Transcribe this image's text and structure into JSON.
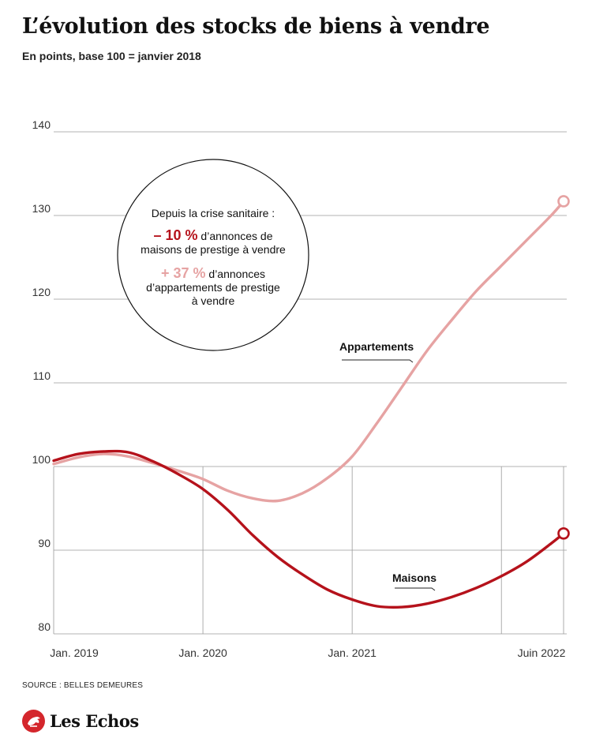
{
  "header": {
    "title": "L’évolution des stocks de biens à vendre",
    "subtitle": "En points, base 100 = janvier 2018"
  },
  "callout": {
    "intro": "Depuis la crise sanitaire :",
    "line1_value": "– 10 %",
    "line1_rest": " d’annonces de",
    "line2": "maisons de prestige à vendre",
    "line3_value": "+ 37 %",
    "line3_rest": " d’annonces",
    "line4": "d’appartements de prestige",
    "line5": "à vendre"
  },
  "footer": {
    "source": "SOURCE : BELLES DEMEURES",
    "logo": "Les Echos"
  },
  "colors": {
    "maisons": "#b5121b",
    "appartements": "#e6a3a3",
    "callout_value_maisons": "#b5121b",
    "callout_value_appartements": "#e6a3a3",
    "grid": "#9a9a9a"
  },
  "chart_data": {
    "type": "line",
    "title": "L’évolution des stocks de biens à vendre",
    "subtitle": "En points, base 100 = janvier 2018",
    "xlabel": "",
    "ylabel": "",
    "ylim": [
      80,
      140
    ],
    "yticks": [
      80,
      90,
      100,
      110,
      120,
      130,
      140
    ],
    "xlim": [
      "2019-01",
      "2022-06"
    ],
    "xticks": [
      {
        "x": "2019-01",
        "label": "Jan. 2019"
      },
      {
        "x": "2020-01",
        "label": "Jan. 2020"
      },
      {
        "x": "2021-01",
        "label": "Jan. 2021"
      },
      {
        "x": "2022-06",
        "label": "Juin 2022"
      }
    ],
    "vertical_gridlines": [
      "2019-01",
      "2020-01",
      "2021-01",
      "2022-01",
      "2022-06"
    ],
    "series": [
      {
        "name": "Maisons",
        "color": "#b5121b",
        "points": [
          {
            "x": "2019-01",
            "y": 100.7
          },
          {
            "x": "2019-03",
            "y": 101.5
          },
          {
            "x": "2019-05",
            "y": 101.8
          },
          {
            "x": "2019-07",
            "y": 101.7
          },
          {
            "x": "2019-09",
            "y": 100.6
          },
          {
            "x": "2019-11",
            "y": 99.1
          },
          {
            "x": "2020-01",
            "y": 97.3
          },
          {
            "x": "2020-03",
            "y": 94.8
          },
          {
            "x": "2020-05",
            "y": 91.8
          },
          {
            "x": "2020-07",
            "y": 89.2
          },
          {
            "x": "2020-09",
            "y": 87.1
          },
          {
            "x": "2020-11",
            "y": 85.3
          },
          {
            "x": "2021-01",
            "y": 84.1
          },
          {
            "x": "2021-03",
            "y": 83.3
          },
          {
            "x": "2021-05",
            "y": 83.2
          },
          {
            "x": "2021-07",
            "y": 83.6
          },
          {
            "x": "2021-09",
            "y": 84.4
          },
          {
            "x": "2021-11",
            "y": 85.5
          },
          {
            "x": "2022-01",
            "y": 86.9
          },
          {
            "x": "2022-03",
            "y": 88.6
          },
          {
            "x": "2022-05",
            "y": 90.8
          },
          {
            "x": "2022-06",
            "y": 92.0
          }
        ]
      },
      {
        "name": "Appartements",
        "color": "#e6a3a3",
        "points": [
          {
            "x": "2019-01",
            "y": 100.3
          },
          {
            "x": "2019-03",
            "y": 101.1
          },
          {
            "x": "2019-05",
            "y": 101.5
          },
          {
            "x": "2019-07",
            "y": 101.2
          },
          {
            "x": "2019-09",
            "y": 100.4
          },
          {
            "x": "2019-11",
            "y": 99.5
          },
          {
            "x": "2020-01",
            "y": 98.5
          },
          {
            "x": "2020-03",
            "y": 97.1
          },
          {
            "x": "2020-05",
            "y": 96.2
          },
          {
            "x": "2020-07",
            "y": 95.9
          },
          {
            "x": "2020-09",
            "y": 96.8
          },
          {
            "x": "2020-11",
            "y": 98.6
          },
          {
            "x": "2021-01",
            "y": 101.2
          },
          {
            "x": "2021-03",
            "y": 105.2
          },
          {
            "x": "2021-05",
            "y": 109.5
          },
          {
            "x": "2021-07",
            "y": 113.8
          },
          {
            "x": "2021-09",
            "y": 117.5
          },
          {
            "x": "2021-11",
            "y": 121.0
          },
          {
            "x": "2022-01",
            "y": 124.0
          },
          {
            "x": "2022-03",
            "y": 127.0
          },
          {
            "x": "2022-05",
            "y": 130.0
          },
          {
            "x": "2022-06",
            "y": 131.7
          }
        ]
      }
    ],
    "series_labels": [
      {
        "series": "Appartements",
        "text": "Appartements"
      },
      {
        "series": "Maisons",
        "text": "Maisons"
      }
    ],
    "grid": true,
    "legend": "none"
  }
}
